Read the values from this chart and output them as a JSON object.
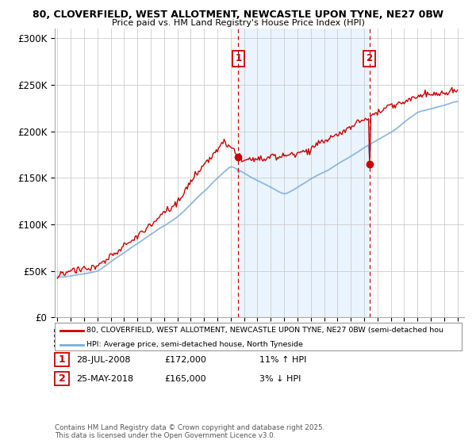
{
  "title1": "80, CLOVERFIELD, WEST ALLOTMENT, NEWCASTLE UPON TYNE, NE27 0BW",
  "title2": "Price paid vs. HM Land Registry's House Price Index (HPI)",
  "ylabel_ticks": [
    "£0",
    "£50K",
    "£100K",
    "£150K",
    "£200K",
    "£250K",
    "£300K"
  ],
  "ytick_values": [
    0,
    50000,
    100000,
    150000,
    200000,
    250000,
    300000
  ],
  "ylim": [
    0,
    310000
  ],
  "sale1_date": "28-JUL-2008",
  "sale1_price": 172000,
  "sale1_hpi_diff": "11% ↑ HPI",
  "sale2_date": "25-MAY-2018",
  "sale2_price": 165000,
  "sale2_hpi_diff": "3% ↓ HPI",
  "legend_line1": "80, CLOVERFIELD, WEST ALLOTMENT, NEWCASTLE UPON TYNE, NE27 0BW (semi-detached hou",
  "legend_line2": "HPI: Average price, semi-detached house, North Tyneside",
  "footer": "Contains HM Land Registry data © Crown copyright and database right 2025.\nThis data is licensed under the Open Government Licence v3.0.",
  "line_color_red": "#cc0000",
  "line_color_blue": "#7aaddc",
  "shade_color": "#ddeeff",
  "vline_color": "#cc0000",
  "bg_color": "#ffffff",
  "grid_color": "#cccccc",
  "sale1_x": 2008.57,
  "sale2_x": 2018.4,
  "xmin": 1994.8,
  "xmax": 2025.5
}
